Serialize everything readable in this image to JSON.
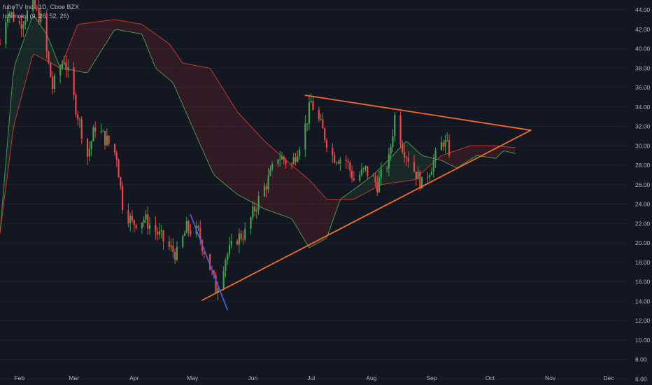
{
  "legend": {
    "symbol": "fuboTV Inc., 1D, Cboe BZX",
    "indicator": "Ichimoku (9, 26, 52, 26)"
  },
  "colors": {
    "background": "#131722",
    "grid": "#1e222d",
    "up": "#26a69a",
    "up_candle": "#3fa34d",
    "down_candle": "#ef4444",
    "triangle": "#f26b2a",
    "downtrend": "#4a5bd1",
    "span_a": "#4caf50",
    "span_b": "#e53935",
    "cloud_bull": "rgba(76,175,80,0.12)",
    "cloud_bear": "rgba(229,57,53,0.14)"
  },
  "chart_data": {
    "type": "candlestick",
    "title": "fuboTV Inc., 1D, Cboe BZX",
    "x_axis_labels": [
      "Feb",
      "Mar",
      "Apr",
      "May",
      "Jun",
      "Jul",
      "Aug",
      "Sep",
      "Oct",
      "Nov",
      "Dec"
    ],
    "y_axis_labels": [
      "44.00",
      "42.00",
      "40.00",
      "38.00",
      "36.00",
      "34.00",
      "32.00",
      "30.00",
      "28.00",
      "26.00",
      "24.00",
      "22.00",
      "20.00",
      "18.00",
      "16.00",
      "14.00",
      "12.00",
      "10.00",
      "8.00",
      "6.00"
    ],
    "ylim": [
      6,
      45
    ],
    "x_range": [
      "2021-01-22",
      "2021-12-10"
    ],
    "price_path": [
      [
        "2021-01-22",
        40.5
      ],
      [
        "2021-01-26",
        44.0
      ],
      [
        "2021-02-01",
        42.5
      ],
      [
        "2021-02-08",
        44.5
      ],
      [
        "2021-02-12",
        43.0
      ],
      [
        "2021-02-18",
        36.0
      ],
      [
        "2021-02-24",
        39.0
      ],
      [
        "2021-03-02",
        34.0
      ],
      [
        "2021-03-08",
        29.0
      ],
      [
        "2021-03-12",
        32.0
      ],
      [
        "2021-03-18",
        30.5
      ],
      [
        "2021-03-23",
        29.0
      ],
      [
        "2021-03-26",
        24.0
      ],
      [
        "2021-03-31",
        22.0
      ],
      [
        "2021-04-06",
        22.5
      ],
      [
        "2021-04-13",
        21.0
      ],
      [
        "2021-04-19",
        19.5
      ],
      [
        "2021-04-23",
        18.8
      ],
      [
        "2021-04-28",
        21.5
      ],
      [
        "2021-05-04",
        21.0
      ],
      [
        "2021-05-10",
        17.5
      ],
      [
        "2021-05-13",
        15.3
      ],
      [
        "2021-05-18",
        18.5
      ],
      [
        "2021-05-24",
        20.5
      ],
      [
        "2021-05-28",
        21.0
      ],
      [
        "2021-06-03",
        24.0
      ],
      [
        "2021-06-09",
        26.5
      ],
      [
        "2021-06-14",
        29.0
      ],
      [
        "2021-06-21",
        28.0
      ],
      [
        "2021-06-28",
        32.0
      ],
      [
        "2021-07-01",
        34.5
      ],
      [
        "2021-07-06",
        32.0
      ],
      [
        "2021-07-12",
        29.0
      ],
      [
        "2021-07-19",
        28.5
      ],
      [
        "2021-07-23",
        26.5
      ],
      [
        "2021-07-29",
        27.5
      ],
      [
        "2021-08-04",
        26.0
      ],
      [
        "2021-08-10",
        28.5
      ],
      [
        "2021-08-13",
        33.0
      ],
      [
        "2021-08-17",
        30.0
      ],
      [
        "2021-08-23",
        27.5
      ],
      [
        "2021-08-27",
        26.0
      ],
      [
        "2021-09-01",
        28.0
      ],
      [
        "2021-09-07",
        30.5
      ],
      [
        "2021-09-10",
        29.5
      ]
    ],
    "ichimoku": {
      "settings": [
        9,
        26,
        52,
        26
      ],
      "span_a": [
        [
          "2021-01-22",
          21.0
        ],
        [
          "2021-01-29",
          38.0
        ],
        [
          "2021-02-08",
          43.5
        ],
        [
          "2021-02-15",
          41.5
        ],
        [
          "2021-02-22",
          38.0
        ],
        [
          "2021-03-08",
          37.5
        ],
        [
          "2021-03-22",
          42.0
        ],
        [
          "2021-04-05",
          41.5
        ],
        [
          "2021-04-12",
          38.0
        ],
        [
          "2021-04-21",
          36.5
        ],
        [
          "2021-05-03",
          31.0
        ],
        [
          "2021-05-12",
          27.0
        ],
        [
          "2021-05-24",
          25.0
        ],
        [
          "2021-06-07",
          23.5
        ],
        [
          "2021-06-21",
          22.5
        ],
        [
          "2021-06-30",
          19.5
        ],
        [
          "2021-07-09",
          20.5
        ],
        [
          "2021-07-16",
          24.5
        ],
        [
          "2021-07-23",
          25.5
        ],
        [
          "2021-08-02",
          27.0
        ],
        [
          "2021-08-12",
          29.0
        ],
        [
          "2021-08-19",
          30.5
        ],
        [
          "2021-08-27",
          29.0
        ],
        [
          "2021-09-06",
          28.5
        ],
        [
          "2021-09-14",
          27.7
        ],
        [
          "2021-09-24",
          29.0
        ],
        [
          "2021-10-04",
          28.7
        ],
        [
          "2021-10-08",
          29.5
        ],
        [
          "2021-10-14",
          29.2
        ]
      ],
      "span_b": [
        [
          "2021-01-22",
          21.0
        ],
        [
          "2021-01-29",
          32.0
        ],
        [
          "2021-02-08",
          39.5
        ],
        [
          "2021-02-22",
          38.0
        ],
        [
          "2021-03-03",
          42.5
        ],
        [
          "2021-03-22",
          43.0
        ],
        [
          "2021-04-05",
          42.5
        ],
        [
          "2021-04-19",
          40.5
        ],
        [
          "2021-04-26",
          38.5
        ],
        [
          "2021-05-10",
          38.0
        ],
        [
          "2021-05-24",
          33.5
        ],
        [
          "2021-06-07",
          30.5
        ],
        [
          "2021-06-21",
          28.0
        ],
        [
          "2021-06-30",
          26.5
        ],
        [
          "2021-07-09",
          24.5
        ],
        [
          "2021-07-23",
          24.5
        ],
        [
          "2021-08-06",
          26.0
        ],
        [
          "2021-08-23",
          26.5
        ],
        [
          "2021-09-06",
          29.0
        ],
        [
          "2021-09-21",
          30.0
        ],
        [
          "2021-10-04",
          30.0
        ],
        [
          "2021-10-14",
          29.8
        ]
      ]
    },
    "trendlines": [
      {
        "kind": "triangle_upper",
        "from": [
          "2021-06-28",
          35.2
        ],
        "to": [
          "2021-10-22",
          31.6
        ]
      },
      {
        "kind": "triangle_lower",
        "from": [
          "2021-05-06",
          14.1
        ],
        "to": [
          "2021-10-22",
          31.6
        ]
      },
      {
        "kind": "downtrend",
        "from": [
          "2021-04-30",
          22.9
        ],
        "to": [
          "2021-05-19",
          13.1
        ]
      }
    ],
    "grid": false,
    "legend_position": "top-left"
  }
}
